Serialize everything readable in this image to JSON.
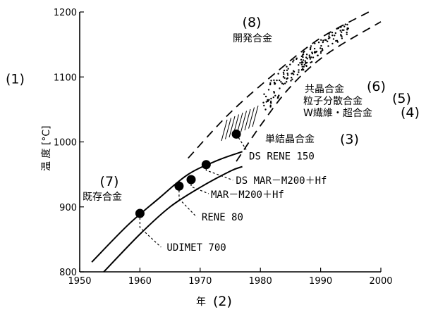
{
  "chart_data": {
    "type": "line",
    "x_ticks": [
      "1950",
      "1960",
      "1970",
      "1980",
      "1990",
      "2000"
    ],
    "y_ticks": [
      "800",
      "900",
      "1000",
      "1100",
      "1200"
    ],
    "xlim": [
      1950,
      2000
    ],
    "ylim": [
      800,
      1200
    ],
    "xlabel": "年",
    "xlabel_num": "(2)",
    "ylabel": "温 度 [°C]",
    "ylabel_num": "(1)",
    "band_existing": {
      "upper": [
        [
          1952,
          815
        ],
        [
          1958,
          872
        ],
        [
          1963,
          912
        ],
        [
          1968,
          950
        ],
        [
          1973,
          972
        ],
        [
          1977,
          985
        ]
      ],
      "lower": [
        [
          1954,
          800
        ],
        [
          1960,
          858
        ],
        [
          1965,
          900
        ],
        [
          1970,
          930
        ],
        [
          1975,
          955
        ],
        [
          1977,
          962
        ]
      ]
    },
    "band_developing": {
      "upper": [
        [
          1968,
          975
        ],
        [
          1975,
          1045
        ],
        [
          1983,
          1110
        ],
        [
          1990,
          1160
        ],
        [
          1998,
          1200
        ]
      ],
      "lower": [
        [
          1976,
          970
        ],
        [
          1980,
          1025
        ],
        [
          1985,
          1085
        ],
        [
          1991,
          1135
        ],
        [
          2000,
          1185
        ]
      ]
    },
    "points": [
      {
        "x": 1960,
        "y": 890,
        "label": "UDIMET 700"
      },
      {
        "x": 1966.5,
        "y": 932,
        "label": "RENE 80"
      },
      {
        "x": 1968.5,
        "y": 942,
        "label": "MAR－M200＋Hf"
      },
      {
        "x": 1971,
        "y": 965,
        "label": "DS MAR－M200＋Hf"
      },
      {
        "x": 1976,
        "y": 1012,
        "label": "DS RENE 150"
      }
    ],
    "annotations": {
      "existing_num": "(7)",
      "existing": "既存合金",
      "developing_num": "(8)",
      "developing": "開発合金",
      "single_crystal": "単結晶合金",
      "single_crystal_num": "(3)",
      "eutectic": "共晶合金",
      "ods": "粒子分散合金",
      "fiber": "W繊維・超合金",
      "num_6": "(6)",
      "num_5": "(5)",
      "num_4": "(4)"
    }
  }
}
